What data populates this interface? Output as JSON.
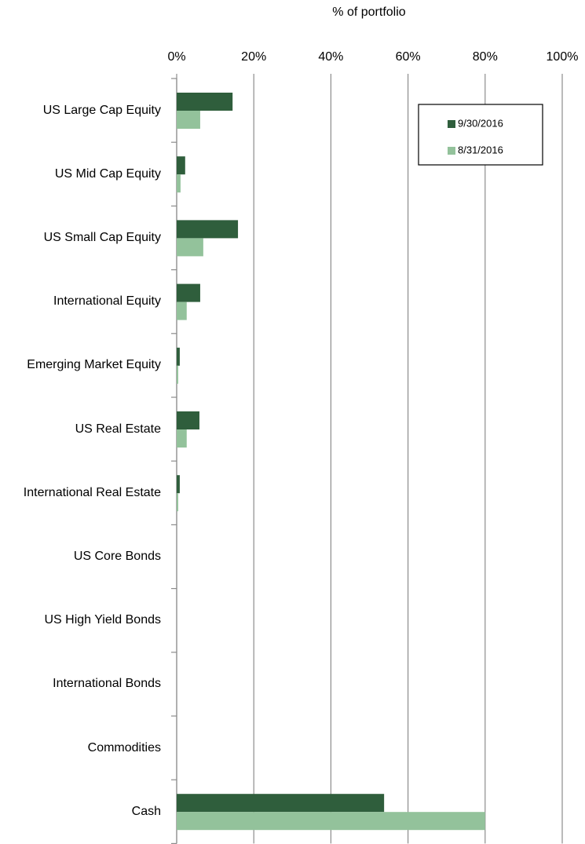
{
  "chart_data": {
    "type": "hbar",
    "x_label": "% of portfolio",
    "categories": [
      "US Large Cap Equity",
      "US Mid Cap Equity",
      "US Small Cap Equity",
      "International Equity",
      "Emerging Market Equity",
      "US Real Estate",
      "International Real Estate",
      "US Core Bonds",
      "US High Yield Bonds",
      "International Bonds",
      "Commodities",
      "Cash"
    ],
    "series": [
      {
        "name": "9/30/2016",
        "color": "#2f5e3c",
        "values": [
          14.5,
          2.2,
          15.9,
          6.1,
          0.8,
          5.9,
          0.8,
          0,
          0,
          0,
          0,
          53.8
        ]
      },
      {
        "name": "8/31/2016",
        "color": "#93c29b",
        "values": [
          6.1,
          1.0,
          6.9,
          2.6,
          0.4,
          2.6,
          0.4,
          0,
          0,
          0,
          0,
          80.0
        ]
      }
    ],
    "xlim": [
      0,
      100
    ],
    "xticks": [
      {
        "value": 0,
        "label": "0%"
      },
      {
        "value": 20,
        "label": "20%"
      },
      {
        "value": 40,
        "label": "40%"
      },
      {
        "value": 60,
        "label": "60%"
      },
      {
        "value": 80,
        "label": "80%"
      },
      {
        "value": 100,
        "label": "100%"
      }
    ],
    "grid": true,
    "legend": "top-right"
  }
}
